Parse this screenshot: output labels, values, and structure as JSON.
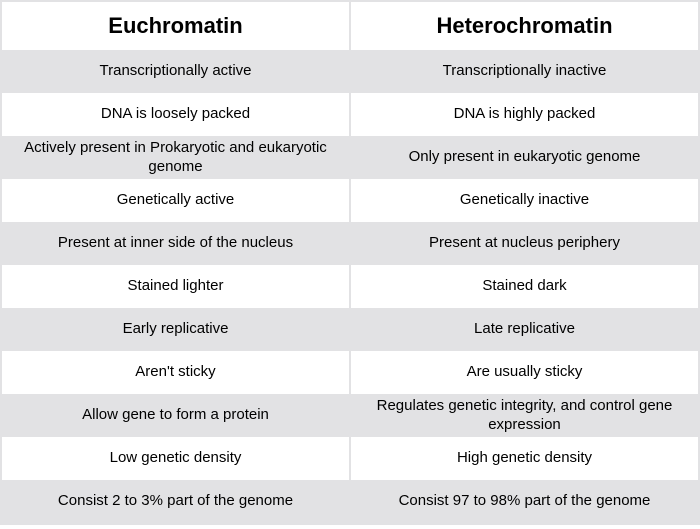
{
  "table": {
    "type": "table",
    "columns": [
      "Euchromatin",
      "Heterochromatin"
    ],
    "header_fontsize": 22,
    "header_fontweight": 700,
    "cell_fontsize": 15,
    "cell_fontweight": 400,
    "text_color": "#000000",
    "stripe_color_odd": "#e2e2e4",
    "stripe_color_even": "#ffffff",
    "border_color": "#e2e2e4",
    "column_align": [
      "center",
      "center"
    ],
    "rows": [
      [
        "Transcriptionally active",
        "Transcriptionally inactive"
      ],
      [
        "DNA is loosely packed",
        "DNA is highly packed"
      ],
      [
        "Actively present in Prokaryotic and eukaryotic genome",
        "Only present in eukaryotic genome"
      ],
      [
        "Genetically active",
        "Genetically inactive"
      ],
      [
        "Present at inner side of the nucleus",
        "Present at nucleus periphery"
      ],
      [
        "Stained lighter",
        "Stained dark"
      ],
      [
        "Early replicative",
        "Late replicative"
      ],
      [
        "Aren't sticky",
        "Are usually sticky"
      ],
      [
        "Allow gene to form a protein",
        "Regulates genetic integrity, and control gene expression"
      ],
      [
        "Low genetic density",
        "High genetic density"
      ],
      [
        "Consist 2 to 3% part of the genome",
        "Consist 97 to 98% part of the genome"
      ]
    ]
  }
}
